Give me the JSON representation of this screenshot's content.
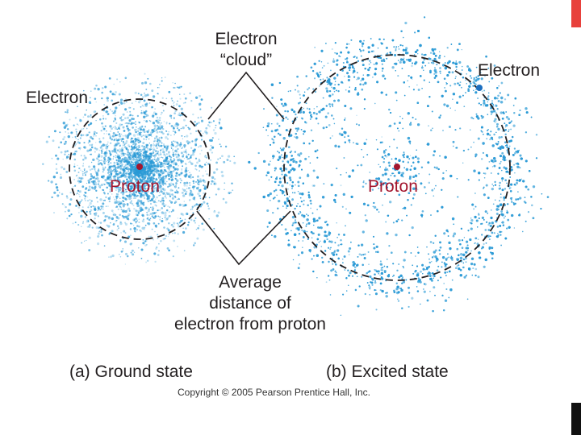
{
  "labels": {
    "cloud_line1": "Electron",
    "cloud_line2": "“cloud”",
    "electron_left": "Electron",
    "electron_right": "Electron",
    "proton_left": "Proton",
    "proton_right": "Proton",
    "average_line1": "Average",
    "average_line2": "distance of",
    "average_line3": "electron from proton"
  },
  "captions": {
    "ground": "(a) Ground state",
    "excited": "(b) Excited state"
  },
  "copyright": "Copyright © 2005 Pearson Prentice Hall, Inc.",
  "colors": {
    "cloud": "#2a9ad6",
    "proton": "#a3162e",
    "electron_dot": "#1c6fc0",
    "dashed_orbit": "#231f20",
    "corner_top": "#e8413c",
    "corner_bottom": "#111111"
  }
}
